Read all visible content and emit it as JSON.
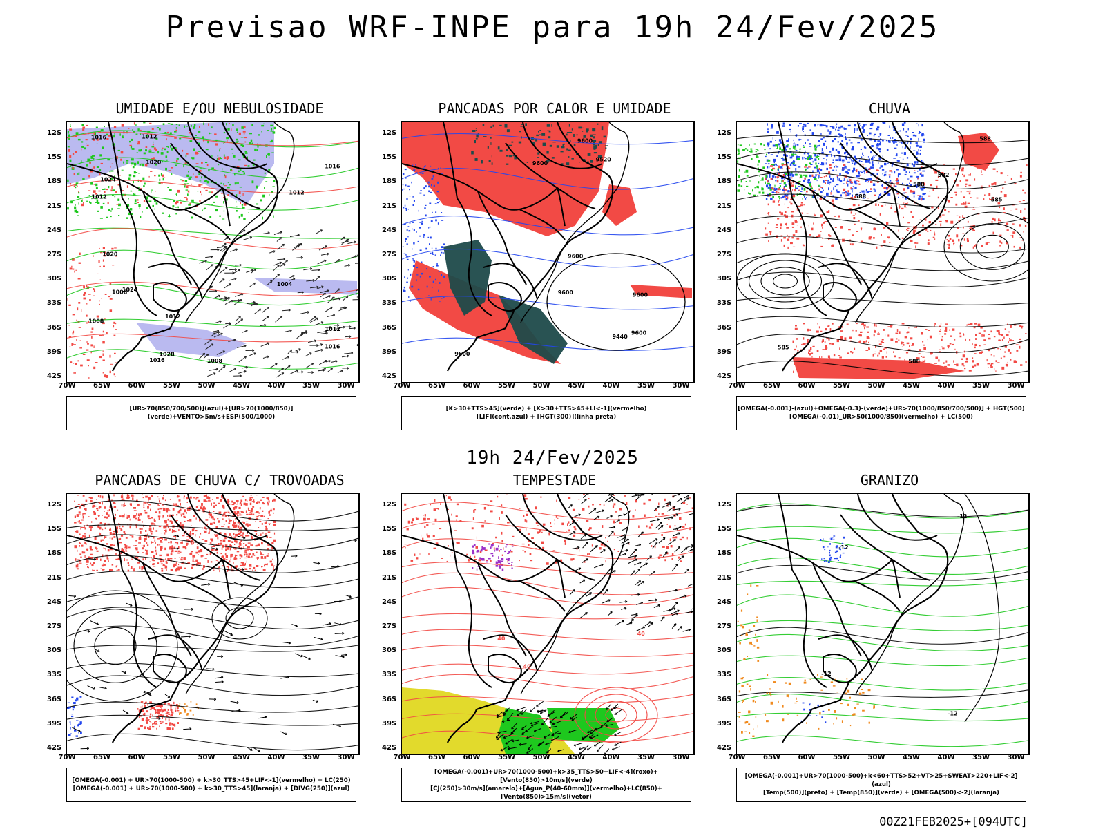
{
  "header": {
    "title": "Previsao WRF-INPE  para 19h 24/Fev/2025"
  },
  "middle": {
    "title": "19h 24/Fev/2025"
  },
  "footer": {
    "run": "00Z21FEB2025+[094UTC]"
  },
  "axes": {
    "lat_labels": [
      "12S",
      "15S",
      "18S",
      "21S",
      "24S",
      "27S",
      "30S",
      "33S",
      "36S",
      "39S",
      "42S"
    ],
    "lon_labels": [
      "70W",
      "65W",
      "60W",
      "55W",
      "50W",
      "45W",
      "40W",
      "35W",
      "30W"
    ]
  },
  "colors": {
    "red": "#f24a45",
    "green": "#1ec81e",
    "blue": "#2246ee",
    "lavender": "#b3b3ee",
    "teal": "#1e4a4a",
    "orange": "#f08a1e",
    "yellow": "#e2da2c",
    "purple": "#9b30c8"
  },
  "panels": [
    {
      "title": "UMIDADE E/OU NEBULOSIDADE",
      "legend": [
        "[UR>70(850/700/500)](azul)+[UR>70(1000/850)](verde)+VENTO>5m/s+ESP(500/1000)"
      ],
      "contour_labels": [
        "1012",
        "1008",
        "1016",
        "1012",
        "1012",
        "1016",
        "1016",
        "1008",
        "1012",
        "1016",
        "1020",
        "1024",
        "1004",
        "1020",
        "1024",
        "1008",
        "1012",
        "1028"
      ]
    },
    {
      "title": "PANCADAS POR CALOR E UMIDADE",
      "legend": [
        "[K>30+TTS>45](verde) + [K>30+TTS>45+LI<-1](vermelho)",
        "[LIF](cont.azul) + [HGT(300)](linha preta)"
      ],
      "contour_labels": [
        "9600",
        "9600",
        "9600",
        "9600",
        "9600",
        "9600",
        "9600",
        "9520",
        "9440"
      ]
    },
    {
      "title": "CHUVA",
      "legend": [
        "[OMEGA(-0.001)-(azul)+OMEGA(-0.3)-(verde)+UR>70(1000/850/700/500)] + HGT(500)",
        "[OMEGA(-0.01)_UR>50(1000/850)(vermelho) + LC(500)"
      ],
      "contour_labels": [
        "588",
        "588",
        "585",
        "588",
        "585",
        "588",
        "582"
      ]
    },
    {
      "title": "PANCADAS DE CHUVA C/ TROVOADAS",
      "legend": [
        "[OMEGA(-0.001) + UR>70(1000-500) + k>30_TTS>45+LIF<-1](vermelho) + LC(250)",
        "[OMEGA(-0.001) + UR>70(1000-500) + k>30_TTS>45](laranja) + [DIVG(250)](azul)"
      ],
      "contour_labels": []
    },
    {
      "title": "TEMPESTADE",
      "legend": [
        "[OMEGA(-0.001)+UR>70(1000-500)+k>35_TTS>50+LIF<-4](roxo)+[Vento(850)>10m/s](verde)",
        "[CJ(250)>30m/s](amarelo)+[Agua_P(40-60mm)](vermelho)+LC(850)+[Vento(850)>15m/s](vetor)"
      ],
      "contour_labels": [
        "40",
        "40",
        "40"
      ]
    },
    {
      "title": "GRANIZO",
      "legend": [
        "[OMEGA(-0.001)+UR>70(1000-500)+k<60+TTS>52+VT>25+SWEAT>220+LIF<-2](azul)",
        "[Temp(500)](preto) + [Temp(850)](verde) + [OMEGA(500)<-2](laranja)"
      ],
      "contour_labels": [
        "-12",
        "-12",
        "-12",
        "-12"
      ]
    }
  ]
}
